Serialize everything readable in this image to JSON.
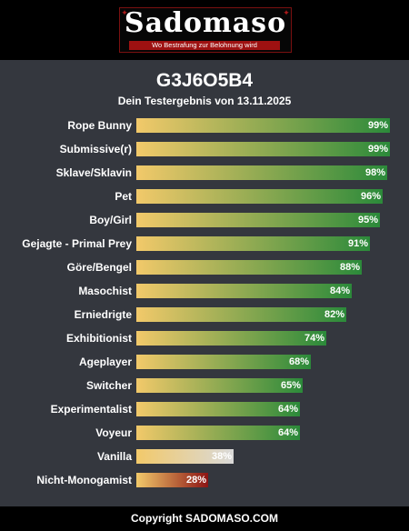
{
  "brand": {
    "logo_text": "Sadomaso",
    "tagline": "Wo Bestrafung zur Belohnung wird"
  },
  "header": {
    "title": "G3J6O5B4",
    "subtitle": "Dein Testergebnis von 13.11.2025"
  },
  "footer": {
    "copyright": "Copyright SADOMASO.COM"
  },
  "colors": {
    "gradient_start": "#f2c96a",
    "high_end": "#2b8a3a",
    "neutral_end": "#d9d9d9",
    "low_end": "#8c1414"
  },
  "chart_data": {
    "type": "bar",
    "orientation": "horizontal",
    "title": "G3J6O5B4",
    "subtitle": "Dein Testergebnis von 13.11.2025",
    "xlim": [
      0,
      100
    ],
    "unit": "%",
    "grid": false,
    "categories": [
      "Rope Bunny",
      "Submissive(r)",
      "Sklave/Sklavin",
      "Pet",
      "Boy/Girl",
      "Gejagte - Primal Prey",
      "Göre/Bengel",
      "Masochist",
      "Erniedrigte",
      "Exhibitionist",
      "Ageplayer",
      "Switcher",
      "Experimentalist",
      "Voyeur",
      "Vanilla",
      "Nicht-Monogamist"
    ],
    "values": [
      99,
      99,
      98,
      96,
      95,
      91,
      88,
      84,
      82,
      74,
      68,
      65,
      64,
      64,
      38,
      28
    ],
    "value_labels": [
      "99%",
      "99%",
      "98%",
      "96%",
      "95%",
      "91%",
      "88%",
      "84%",
      "82%",
      "74%",
      "68%",
      "65%",
      "64%",
      "64%",
      "38%",
      "28%"
    ],
    "bar_tones": [
      "high",
      "high",
      "high",
      "high",
      "high",
      "high",
      "high",
      "high",
      "high",
      "high",
      "high",
      "high",
      "high",
      "high",
      "neutral",
      "low"
    ]
  }
}
